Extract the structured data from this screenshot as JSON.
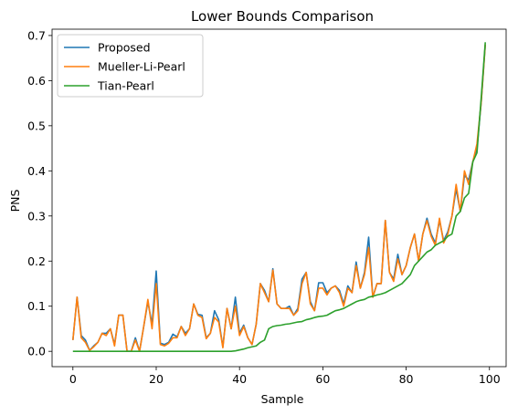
{
  "chart_data": {
    "type": "line",
    "title": "Lower Bounds Comparison",
    "xlabel": "Sample",
    "ylabel": "PNS",
    "xlim": [
      -5,
      104
    ],
    "ylim": [
      -0.034,
      0.714
    ],
    "xticks": [
      0,
      20,
      40,
      60,
      80,
      100
    ],
    "yticks": [
      0.0,
      0.1,
      0.2,
      0.3,
      0.4,
      0.5,
      0.6,
      0.7
    ],
    "xtick_labels": [
      "0",
      "20",
      "40",
      "60",
      "80",
      "100"
    ],
    "ytick_labels": [
      "0.0",
      "0.1",
      "0.2",
      "0.3",
      "0.4",
      "0.5",
      "0.6",
      "0.7"
    ],
    "grid": false,
    "legend_position": "top-left",
    "x": [
      0,
      1,
      2,
      3,
      4,
      5,
      6,
      7,
      8,
      9,
      10,
      11,
      12,
      13,
      14,
      15,
      16,
      17,
      18,
      19,
      20,
      21,
      22,
      23,
      24,
      25,
      26,
      27,
      28,
      29,
      30,
      31,
      32,
      33,
      34,
      35,
      36,
      37,
      38,
      39,
      40,
      41,
      42,
      43,
      44,
      45,
      46,
      47,
      48,
      49,
      50,
      51,
      52,
      53,
      54,
      55,
      56,
      57,
      58,
      59,
      60,
      61,
      62,
      63,
      64,
      65,
      66,
      67,
      68,
      69,
      70,
      71,
      72,
      73,
      74,
      75,
      76,
      77,
      78,
      79,
      80,
      81,
      82,
      83,
      84,
      85,
      86,
      87,
      88,
      89,
      90,
      91,
      92,
      93,
      94,
      95,
      96,
      97,
      98,
      99
    ],
    "series": [
      {
        "name": "Proposed",
        "color": "#1f77b4",
        "values": [
          0.025,
          0.12,
          0.035,
          0.025,
          0.002,
          0.012,
          0.02,
          0.04,
          0.04,
          0.05,
          0.015,
          0.08,
          0.08,
          0.0,
          0.0,
          0.03,
          0.0,
          0.055,
          0.11,
          0.06,
          0.178,
          0.018,
          0.015,
          0.02,
          0.038,
          0.032,
          0.055,
          0.04,
          0.05,
          0.105,
          0.082,
          0.08,
          0.03,
          0.04,
          0.09,
          0.07,
          0.01,
          0.095,
          0.05,
          0.12,
          0.04,
          0.058,
          0.03,
          0.015,
          0.06,
          0.15,
          0.135,
          0.11,
          0.183,
          0.105,
          0.095,
          0.095,
          0.1,
          0.08,
          0.095,
          0.16,
          0.175,
          0.11,
          0.09,
          0.152,
          0.152,
          0.13,
          0.14,
          0.145,
          0.135,
          0.105,
          0.145,
          0.13,
          0.198,
          0.14,
          0.175,
          0.253,
          0.12,
          0.15,
          0.15,
          0.29,
          0.175,
          0.16,
          0.215,
          0.17,
          0.19,
          0.23,
          0.26,
          0.2,
          0.26,
          0.295,
          0.26,
          0.24,
          0.29,
          0.245,
          0.265,
          0.3,
          0.36,
          0.31,
          0.39,
          0.38,
          0.42,
          0.45,
          0.55,
          0.68
        ]
      },
      {
        "name": "Mueller-Li-Pearl",
        "color": "#ff7f0e",
        "values": [
          0.025,
          0.12,
          0.03,
          0.02,
          0.002,
          0.01,
          0.02,
          0.04,
          0.035,
          0.05,
          0.012,
          0.08,
          0.08,
          0.0,
          0.0,
          0.025,
          0.0,
          0.055,
          0.115,
          0.05,
          0.15,
          0.015,
          0.012,
          0.018,
          0.03,
          0.03,
          0.055,
          0.035,
          0.05,
          0.105,
          0.08,
          0.075,
          0.028,
          0.04,
          0.075,
          0.065,
          0.008,
          0.095,
          0.05,
          0.1,
          0.035,
          0.055,
          0.03,
          0.015,
          0.06,
          0.15,
          0.13,
          0.11,
          0.18,
          0.105,
          0.095,
          0.095,
          0.095,
          0.08,
          0.09,
          0.15,
          0.175,
          0.105,
          0.09,
          0.14,
          0.14,
          0.125,
          0.14,
          0.145,
          0.13,
          0.1,
          0.14,
          0.13,
          0.19,
          0.14,
          0.17,
          0.23,
          0.12,
          0.15,
          0.15,
          0.29,
          0.175,
          0.155,
          0.205,
          0.17,
          0.19,
          0.23,
          0.26,
          0.2,
          0.26,
          0.29,
          0.255,
          0.235,
          0.295,
          0.24,
          0.26,
          0.3,
          0.37,
          0.31,
          0.4,
          0.37,
          0.42,
          0.46,
          0.55,
          0.68
        ]
      },
      {
        "name": "Tian-Pearl",
        "color": "#2ca02c",
        "values": [
          0.0,
          0.0,
          0.0,
          0.0,
          0.0,
          0.0,
          0.0,
          0.0,
          0.0,
          0.0,
          0.0,
          0.0,
          0.0,
          0.0,
          0.0,
          0.0,
          0.0,
          0.0,
          0.0,
          0.0,
          0.0,
          0.0,
          0.0,
          0.0,
          0.0,
          0.0,
          0.0,
          0.0,
          0.0,
          0.0,
          0.0,
          0.0,
          0.0,
          0.0,
          0.0,
          0.0,
          0.0,
          0.0,
          0.0,
          0.001,
          0.003,
          0.005,
          0.008,
          0.01,
          0.012,
          0.02,
          0.025,
          0.05,
          0.055,
          0.057,
          0.058,
          0.06,
          0.061,
          0.063,
          0.065,
          0.066,
          0.07,
          0.072,
          0.075,
          0.077,
          0.078,
          0.08,
          0.085,
          0.09,
          0.092,
          0.095,
          0.1,
          0.105,
          0.11,
          0.113,
          0.115,
          0.12,
          0.122,
          0.125,
          0.127,
          0.13,
          0.135,
          0.14,
          0.145,
          0.15,
          0.16,
          0.17,
          0.19,
          0.2,
          0.21,
          0.22,
          0.225,
          0.235,
          0.24,
          0.245,
          0.255,
          0.26,
          0.3,
          0.31,
          0.34,
          0.35,
          0.42,
          0.44,
          0.56,
          0.685
        ]
      }
    ]
  }
}
